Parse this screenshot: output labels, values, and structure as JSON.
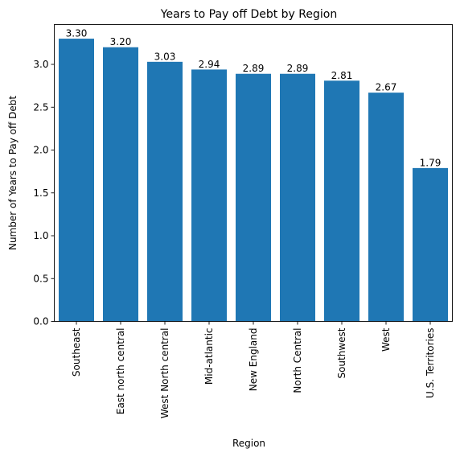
{
  "chart_data": {
    "type": "bar",
    "title": "Years to Pay off Debt by Region",
    "xlabel": "Region",
    "ylabel": "Number of Years to Pay off Debt",
    "categories": [
      "Southeast",
      "East north central",
      "West North central",
      "Mid-atlantic",
      "New England",
      "North Central",
      "Southwest",
      "West",
      "U.S. Territories"
    ],
    "values": [
      3.3,
      3.2,
      3.03,
      2.94,
      2.89,
      2.89,
      2.81,
      2.67,
      1.79
    ],
    "value_labels": [
      "3.30",
      "3.20",
      "3.03",
      "2.94",
      "2.89",
      "2.89",
      "2.81",
      "2.67",
      "1.79"
    ],
    "ylim": [
      0,
      3.465
    ],
    "yticks": [
      0.0,
      0.5,
      1.0,
      1.5,
      2.0,
      2.5,
      3.0
    ],
    "ytick_labels": [
      "0.0",
      "0.5",
      "1.0",
      "1.5",
      "2.0",
      "2.5",
      "3.0"
    ],
    "bar_color": "#1f77b4",
    "grid": false,
    "legend": "none"
  }
}
